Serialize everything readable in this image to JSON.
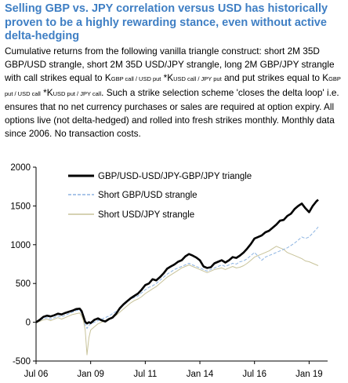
{
  "title": "Selling GBP vs. JPY correlation versus USD has historically proven to be a highly rewarding stance, even without active delta-hedging",
  "caption": {
    "part1": "Cumulative returns from the following vanilla triangle construct: short 2M 35D GBP/USD strangle, short 2M 35D USD/JPY strangle, long 2M GBP/JPY strangle with call strikes equal to K",
    "sub1": "GBP call / USD put",
    "mid1": " *K",
    "sub2": "USD call / JPY put",
    "part2": " and put strikes equal to K",
    "sub3": "GBP put / USD call",
    "mid2": " *K",
    "sub4": "USD put / JPY call",
    "part3": ". Such a strike selection scheme 'closes the delta loop' i.e. ensures that no net currency purchases or sales are required at option expiry. All options live (not delta-hedged) and rolled into fresh strikes monthly. Monthly data since 2006. No transaction costs."
  },
  "chart_data": {
    "type": "line",
    "x_tick_labels": [
      "Jul 06",
      "Jan 09",
      "Jul 11",
      "Jan 14",
      "Jul 16",
      "Jan 19"
    ],
    "x_range": [
      "2006-07",
      "2019-06"
    ],
    "y_ticks": [
      -500,
      0,
      500,
      1000,
      1500,
      2000
    ],
    "ylim": [
      -500,
      2000
    ],
    "legend_placement": "top-center",
    "grid": false,
    "colors": {
      "triangle": "#000000",
      "gbpusd": "#8db4e2",
      "usdjpy": "#c8c39a"
    },
    "series": [
      {
        "name": "GBP/USD-USD/JPY-GBP/JPY triangle",
        "key": "triangle",
        "points": [
          [
            "2006-07",
            0
          ],
          [
            "2006-09",
            30
          ],
          [
            "2006-11",
            70
          ],
          [
            "2007-01",
            85
          ],
          [
            "2007-03",
            75
          ],
          [
            "2007-05",
            90
          ],
          [
            "2007-07",
            110
          ],
          [
            "2007-09",
            100
          ],
          [
            "2007-11",
            120
          ],
          [
            "2008-01",
            135
          ],
          [
            "2008-03",
            150
          ],
          [
            "2008-05",
            170
          ],
          [
            "2008-07",
            175
          ],
          [
            "2008-08",
            145
          ],
          [
            "2008-09",
            75
          ],
          [
            "2008-10",
            5
          ],
          [
            "2008-11",
            -15
          ],
          [
            "2008-12",
            0
          ],
          [
            "2009-01",
            -10
          ],
          [
            "2009-03",
            30
          ],
          [
            "2009-05",
            50
          ],
          [
            "2009-07",
            25
          ],
          [
            "2009-09",
            10
          ],
          [
            "2009-11",
            40
          ],
          [
            "2010-01",
            60
          ],
          [
            "2010-03",
            110
          ],
          [
            "2010-05",
            180
          ],
          [
            "2010-07",
            230
          ],
          [
            "2010-09",
            270
          ],
          [
            "2010-11",
            310
          ],
          [
            "2011-01",
            340
          ],
          [
            "2011-03",
            370
          ],
          [
            "2011-05",
            420
          ],
          [
            "2011-07",
            480
          ],
          [
            "2011-09",
            500
          ],
          [
            "2011-11",
            555
          ],
          [
            "2012-01",
            540
          ],
          [
            "2012-03",
            580
          ],
          [
            "2012-05",
            630
          ],
          [
            "2012-07",
            690
          ],
          [
            "2012-09",
            720
          ],
          [
            "2012-11",
            745
          ],
          [
            "2013-01",
            780
          ],
          [
            "2013-03",
            800
          ],
          [
            "2013-05",
            850
          ],
          [
            "2013-07",
            880
          ],
          [
            "2013-09",
            860
          ],
          [
            "2013-11",
            835
          ],
          [
            "2014-01",
            800
          ],
          [
            "2014-03",
            720
          ],
          [
            "2014-05",
            700
          ],
          [
            "2014-07",
            710
          ],
          [
            "2014-09",
            760
          ],
          [
            "2014-11",
            780
          ],
          [
            "2015-01",
            800
          ],
          [
            "2015-03",
            770
          ],
          [
            "2015-05",
            800
          ],
          [
            "2015-07",
            840
          ],
          [
            "2015-09",
            830
          ],
          [
            "2015-11",
            860
          ],
          [
            "2016-01",
            900
          ],
          [
            "2016-03",
            950
          ],
          [
            "2016-05",
            1010
          ],
          [
            "2016-07",
            1080
          ],
          [
            "2016-09",
            1100
          ],
          [
            "2016-11",
            1120
          ],
          [
            "2017-01",
            1160
          ],
          [
            "2017-03",
            1180
          ],
          [
            "2017-05",
            1220
          ],
          [
            "2017-07",
            1260
          ],
          [
            "2017-09",
            1310
          ],
          [
            "2017-11",
            1320
          ],
          [
            "2018-01",
            1370
          ],
          [
            "2018-03",
            1400
          ],
          [
            "2018-05",
            1460
          ],
          [
            "2018-07",
            1500
          ],
          [
            "2018-09",
            1530
          ],
          [
            "2018-11",
            1470
          ],
          [
            "2019-01",
            1420
          ],
          [
            "2019-03",
            1500
          ],
          [
            "2019-05",
            1560
          ],
          [
            "2019-06",
            1580
          ]
        ]
      },
      {
        "name": "Short GBP/USD strangle",
        "key": "gbpusd",
        "points": [
          [
            "2006-07",
            0
          ],
          [
            "2006-09",
            20
          ],
          [
            "2006-11",
            50
          ],
          [
            "2007-01",
            60
          ],
          [
            "2007-03",
            40
          ],
          [
            "2007-05",
            60
          ],
          [
            "2007-07",
            80
          ],
          [
            "2007-09",
            70
          ],
          [
            "2007-11",
            90
          ],
          [
            "2008-01",
            110
          ],
          [
            "2008-03",
            130
          ],
          [
            "2008-05",
            150
          ],
          [
            "2008-07",
            160
          ],
          [
            "2008-08",
            120
          ],
          [
            "2008-09",
            60
          ],
          [
            "2008-10",
            -30
          ],
          [
            "2008-11",
            -80
          ],
          [
            "2008-12",
            -40
          ],
          [
            "2009-01",
            -20
          ],
          [
            "2009-03",
            0
          ],
          [
            "2009-05",
            20
          ],
          [
            "2009-07",
            40
          ],
          [
            "2009-09",
            60
          ],
          [
            "2009-11",
            80
          ],
          [
            "2010-01",
            110
          ],
          [
            "2010-03",
            140
          ],
          [
            "2010-05",
            180
          ],
          [
            "2010-07",
            220
          ],
          [
            "2010-09",
            260
          ],
          [
            "2010-11",
            300
          ],
          [
            "2011-01",
            320
          ],
          [
            "2011-03",
            340
          ],
          [
            "2011-05",
            380
          ],
          [
            "2011-07",
            420
          ],
          [
            "2011-09",
            450
          ],
          [
            "2011-11",
            470
          ],
          [
            "2012-01",
            500
          ],
          [
            "2012-03",
            540
          ],
          [
            "2012-05",
            580
          ],
          [
            "2012-07",
            620
          ],
          [
            "2012-09",
            650
          ],
          [
            "2012-11",
            680
          ],
          [
            "2013-01",
            700
          ],
          [
            "2013-03",
            720
          ],
          [
            "2013-05",
            740
          ],
          [
            "2013-07",
            760
          ],
          [
            "2013-09",
            740
          ],
          [
            "2013-11",
            720
          ],
          [
            "2014-01",
            700
          ],
          [
            "2014-03",
            680
          ],
          [
            "2014-05",
            660
          ],
          [
            "2014-07",
            680
          ],
          [
            "2014-09",
            700
          ],
          [
            "2014-11",
            720
          ],
          [
            "2015-01",
            740
          ],
          [
            "2015-03",
            720
          ],
          [
            "2015-05",
            740
          ],
          [
            "2015-07",
            760
          ],
          [
            "2015-09",
            750
          ],
          [
            "2015-11",
            780
          ],
          [
            "2016-01",
            790
          ],
          [
            "2016-03",
            820
          ],
          [
            "2016-05",
            860
          ],
          [
            "2016-07",
            900
          ],
          [
            "2016-09",
            850
          ],
          [
            "2016-11",
            800
          ],
          [
            "2017-01",
            840
          ],
          [
            "2017-03",
            860
          ],
          [
            "2017-05",
            880
          ],
          [
            "2017-07",
            900
          ],
          [
            "2017-09",
            920
          ],
          [
            "2017-11",
            940
          ],
          [
            "2018-01",
            960
          ],
          [
            "2018-03",
            990
          ],
          [
            "2018-05",
            1020
          ],
          [
            "2018-07",
            1060
          ],
          [
            "2018-09",
            1100
          ],
          [
            "2018-11",
            1080
          ],
          [
            "2019-01",
            1100
          ],
          [
            "2019-03",
            1150
          ],
          [
            "2019-05",
            1200
          ],
          [
            "2019-06",
            1230
          ]
        ]
      },
      {
        "name": "Short USD/JPY strangle",
        "key": "usdjpy",
        "points": [
          [
            "2006-07",
            0
          ],
          [
            "2006-09",
            10
          ],
          [
            "2006-11",
            30
          ],
          [
            "2007-01",
            40
          ],
          [
            "2007-03",
            20
          ],
          [
            "2007-05",
            40
          ],
          [
            "2007-07",
            60
          ],
          [
            "2007-09",
            40
          ],
          [
            "2007-11",
            60
          ],
          [
            "2008-01",
            80
          ],
          [
            "2008-03",
            100
          ],
          [
            "2008-05",
            110
          ],
          [
            "2008-07",
            120
          ],
          [
            "2008-08",
            80
          ],
          [
            "2008-09",
            20
          ],
          [
            "2008-10",
            -100
          ],
          [
            "2008-11",
            -420
          ],
          [
            "2008-12",
            -200
          ],
          [
            "2009-01",
            -100
          ],
          [
            "2009-03",
            -60
          ],
          [
            "2009-05",
            -20
          ],
          [
            "2009-07",
            0
          ],
          [
            "2009-09",
            20
          ],
          [
            "2009-11",
            40
          ],
          [
            "2010-01",
            60
          ],
          [
            "2010-03",
            90
          ],
          [
            "2010-05",
            130
          ],
          [
            "2010-07",
            170
          ],
          [
            "2010-09",
            210
          ],
          [
            "2010-11",
            250
          ],
          [
            "2011-01",
            280
          ],
          [
            "2011-03",
            300
          ],
          [
            "2011-05",
            330
          ],
          [
            "2011-07",
            370
          ],
          [
            "2011-09",
            400
          ],
          [
            "2011-11",
            430
          ],
          [
            "2012-01",
            460
          ],
          [
            "2012-03",
            500
          ],
          [
            "2012-05",
            540
          ],
          [
            "2012-07",
            580
          ],
          [
            "2012-09",
            610
          ],
          [
            "2012-11",
            640
          ],
          [
            "2013-01",
            670
          ],
          [
            "2013-03",
            700
          ],
          [
            "2013-05",
            720
          ],
          [
            "2013-07",
            740
          ],
          [
            "2013-09",
            720
          ],
          [
            "2013-11",
            700
          ],
          [
            "2014-01",
            680
          ],
          [
            "2014-03",
            660
          ],
          [
            "2014-05",
            640
          ],
          [
            "2014-07",
            660
          ],
          [
            "2014-09",
            680
          ],
          [
            "2014-11",
            690
          ],
          [
            "2015-01",
            700
          ],
          [
            "2015-03",
            680
          ],
          [
            "2015-05",
            700
          ],
          [
            "2015-07",
            720
          ],
          [
            "2015-09",
            700
          ],
          [
            "2015-11",
            710
          ],
          [
            "2016-01",
            730
          ],
          [
            "2016-03",
            760
          ],
          [
            "2016-05",
            800
          ],
          [
            "2016-07",
            840
          ],
          [
            "2016-09",
            860
          ],
          [
            "2016-11",
            880
          ],
          [
            "2017-01",
            900
          ],
          [
            "2017-03",
            920
          ],
          [
            "2017-05",
            950
          ],
          [
            "2017-07",
            980
          ],
          [
            "2017-09",
            960
          ],
          [
            "2017-11",
            940
          ],
          [
            "2018-01",
            900
          ],
          [
            "2018-03",
            880
          ],
          [
            "2018-05",
            860
          ],
          [
            "2018-07",
            840
          ],
          [
            "2018-09",
            820
          ],
          [
            "2018-11",
            790
          ],
          [
            "2019-01",
            780
          ],
          [
            "2019-03",
            760
          ],
          [
            "2019-05",
            740
          ],
          [
            "2019-06",
            730
          ]
        ]
      }
    ]
  }
}
